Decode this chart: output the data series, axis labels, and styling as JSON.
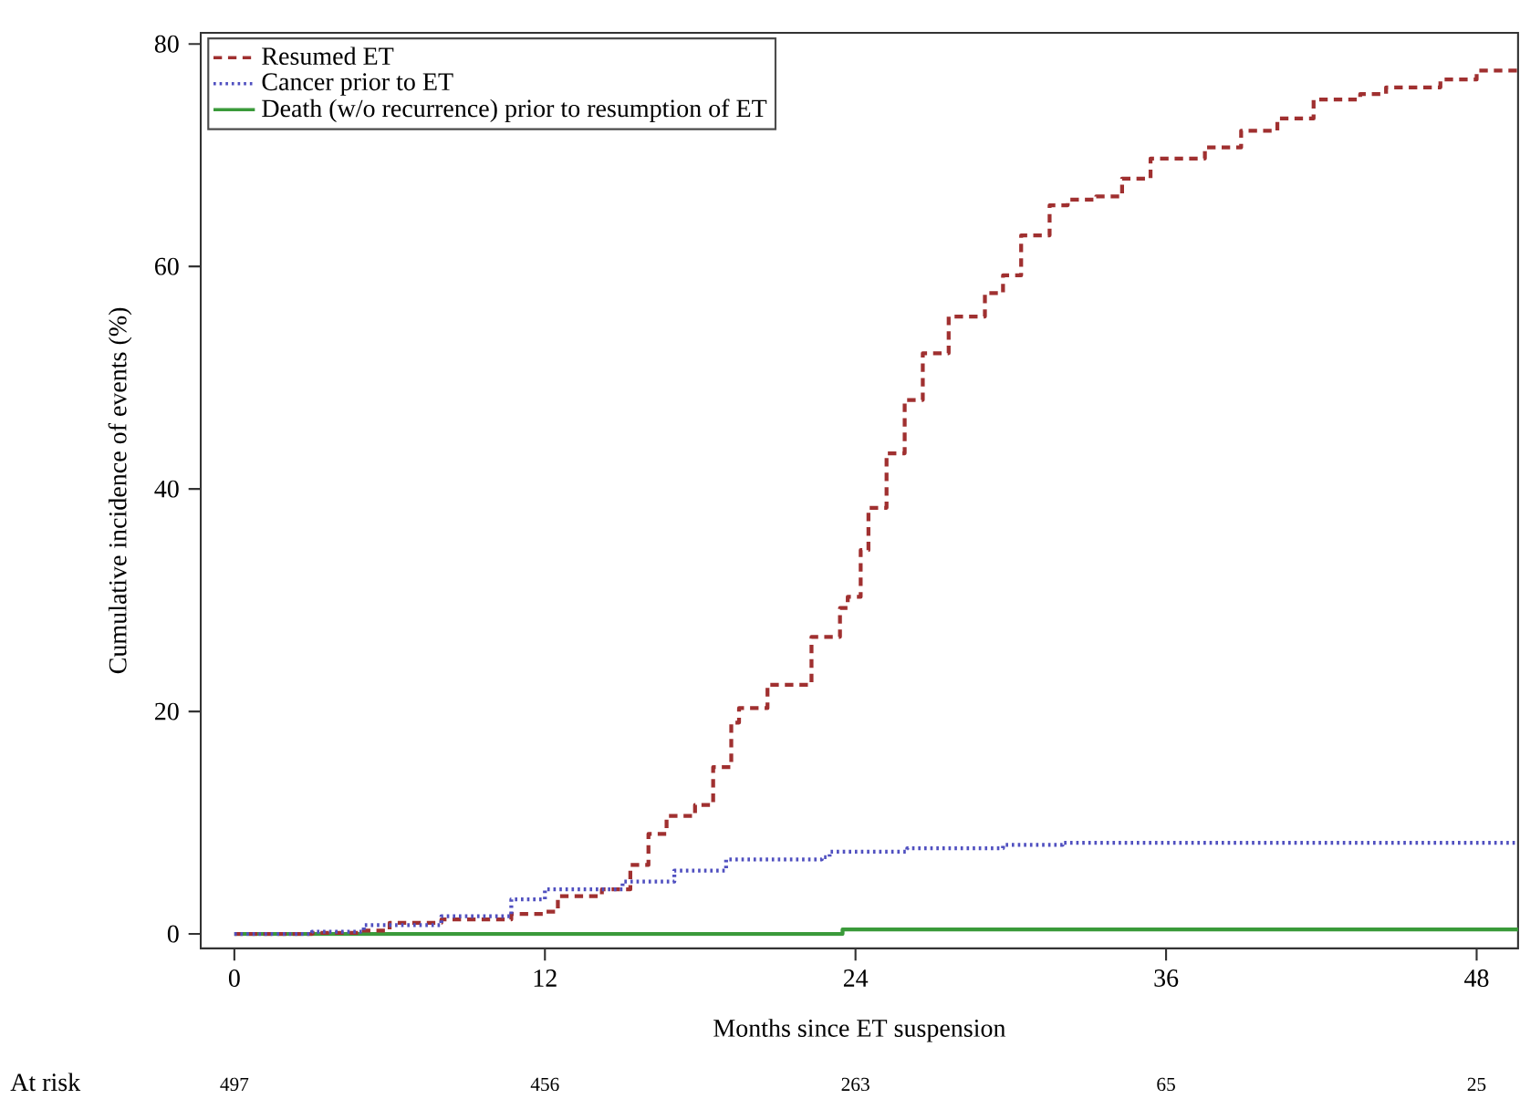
{
  "chart_data": {
    "type": "step",
    "xlabel": "Months since ET suspension",
    "ylabel": "Cumulative incidence of events (%)",
    "xlim": [
      -1.3,
      49.6
    ],
    "ylim": [
      -1.3,
      81
    ],
    "xticks": [
      0,
      12,
      24,
      36,
      48
    ],
    "yticks": [
      0,
      20,
      40,
      60,
      80
    ],
    "grid": false,
    "legend": "top left",
    "series": [
      {
        "name": "Resumed ET",
        "color": "#a03030",
        "line_style": "dashed",
        "x": [
          0,
          3,
          5,
          6,
          8,
          10.7,
          12,
          12.5,
          14.2,
          15.3,
          16,
          16.7,
          17.8,
          18.5,
          19.2,
          19.5,
          20.6,
          22.3,
          23.4,
          23.7,
          24.2,
          24.5,
          25.2,
          25.9,
          26.6,
          27.6,
          29,
          29.7,
          30.4,
          31.5,
          32.2,
          33.3,
          34.3,
          35.4,
          36.8,
          37.5,
          38.9,
          40.3,
          41.7,
          43.5,
          44.5,
          46.6,
          48,
          49.6
        ],
        "values": [
          0,
          0.1,
          0.3,
          1,
          1.3,
          1.8,
          2,
          3.4,
          4,
          6.2,
          9,
          10.6,
          11.6,
          15,
          19,
          20.3,
          22.4,
          26.7,
          29.3,
          30.3,
          34.5,
          38.3,
          43.2,
          48,
          52.2,
          55.5,
          57.6,
          59.2,
          62.8,
          65.5,
          66,
          66.3,
          67.9,
          69.7,
          69.7,
          70.7,
          72.2,
          73.3,
          75,
          75.5,
          76.1,
          76.8,
          77.6,
          77.6
        ]
      },
      {
        "name": "Cancer prior to ET",
        "color": "#5050c0",
        "line_style": "dotted",
        "x": [
          0,
          3,
          5,
          8,
          10.7,
          12,
          15,
          17,
          19,
          22.7,
          23,
          26,
          29.7,
          32,
          35,
          49.6
        ],
        "values": [
          0,
          0.2,
          0.8,
          1.6,
          3.1,
          4,
          4.7,
          5.7,
          6.7,
          6.9,
          7.4,
          7.7,
          8,
          8.2,
          8.2,
          8.2
        ]
      },
      {
        "name": "Death (w/o recurrence) prior to resumption of ET",
        "color": "#3a9a3a",
        "line_style": "solid",
        "x": [
          0,
          23.5,
          49.6
        ],
        "values": [
          0,
          0.4,
          0.4
        ]
      }
    ],
    "annotations": [
      "At risk",
      "497",
      "456",
      "263",
      "65",
      "25"
    ]
  }
}
